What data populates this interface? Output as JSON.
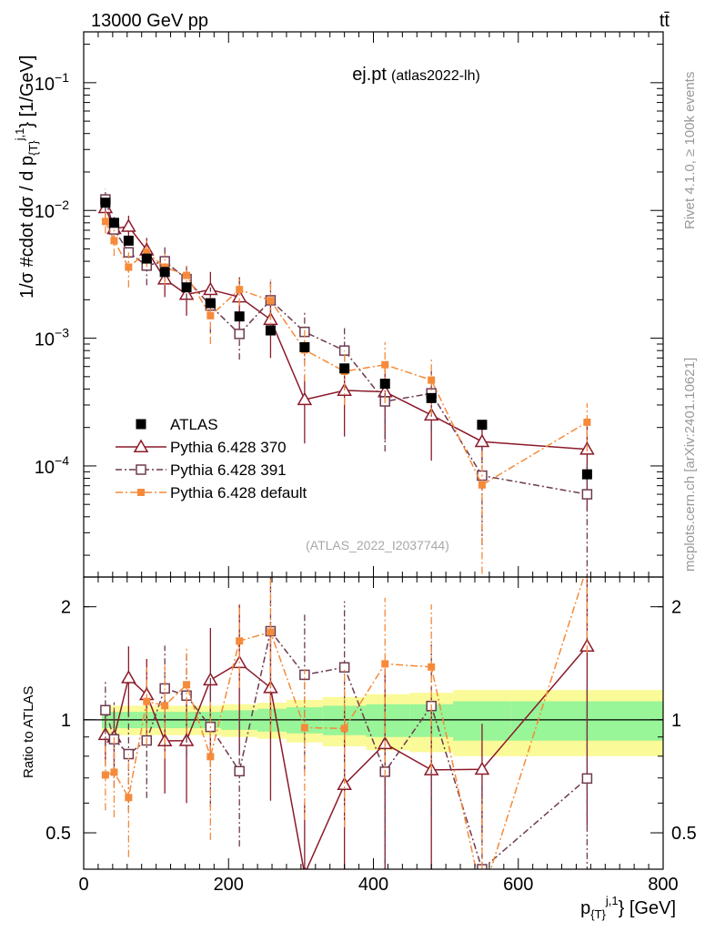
{
  "header": {
    "left": "13000 GeV pp",
    "right": "tt̄"
  },
  "title": {
    "main": "ej.pt",
    "sub": "(atlas2022-lh)"
  },
  "watermark": "(ATLAS_2022_I2037744)",
  "side_texts": {
    "rivet": "Rivet 4.1.0, ≥ 100k events",
    "mcplots": "mcplots.cern.ch [arXiv:2401.10621]"
  },
  "labels": {
    "y_main_prefix": "1/σ #cdot dσ / d p",
    "y_main_sub": "{T}",
    "y_main_sup": "j,1",
    "y_main_suffix": "} [1/GeV]",
    "y_ratio": "Ratio to ATLAS",
    "x_prefix": "p",
    "x_sub": "{T}",
    "x_sup": "j,1",
    "x_suffix": "} [GeV]"
  },
  "colors": {
    "data": "#000000",
    "p370": "#8b1a2a",
    "p391": "#6e3a4e",
    "pdef": "#f58a3a",
    "band_inner": "#98f598",
    "band_outer": "#fafa98"
  },
  "chart_data": {
    "type": "scatter",
    "xlabel": "p_T^{j,1} [GeV]",
    "ylabel": "1/sigma dsigma/dp_T^{j,1} [1/GeV]",
    "xlim": [
      0,
      800
    ],
    "ylim": [
      1.35e-05,
      0.25
    ],
    "yscale": "log",
    "ratio_ylim": [
      0.4,
      2.4
    ],
    "ratio_yscale": "log",
    "x_ticks": [
      0,
      200,
      400,
      600,
      800
    ],
    "x_tick_labels": [
      "0",
      "200",
      "400",
      "600",
      "800"
    ],
    "y_tick_values": [
      0.1,
      0.01,
      0.001,
      0.0001
    ],
    "y_tick_bases": [
      "10",
      "10",
      "10",
      "10"
    ],
    "y_tick_exps": [
      "−1",
      "−2",
      "−3",
      "−4"
    ],
    "ratio_ticks": [
      0.5,
      1,
      2
    ],
    "ratio_tick_labels": [
      "0.5",
      "1",
      "2"
    ],
    "legend": [
      "ATLAS",
      "Pythia 6.428 370",
      "Pythia 6.428 391",
      "Pythia 6.428 default"
    ],
    "bins": [
      [
        25,
        35
      ],
      [
        35,
        50
      ],
      [
        50,
        75
      ],
      [
        75,
        100
      ],
      [
        100,
        125
      ],
      [
        125,
        160
      ],
      [
        160,
        190
      ],
      [
        190,
        240
      ],
      [
        240,
        280
      ],
      [
        280,
        330
      ],
      [
        330,
        390
      ],
      [
        390,
        450
      ],
      [
        450,
        510
      ],
      [
        510,
        590
      ],
      [
        590,
        800
      ]
    ],
    "x": [
      30,
      42,
      62,
      87,
      112,
      142,
      175,
      215,
      258,
      305,
      360,
      416,
      480,
      550,
      695
    ],
    "data": [
      0.0115,
      0.008,
      0.0058,
      0.0042,
      0.0033,
      0.0025,
      0.00188,
      0.00148,
      0.00115,
      0.00085,
      0.00058,
      0.00044,
      0.00034,
      0.00021,
      8.6e-05
    ],
    "data_unc_inner": [
      0.05,
      0.05,
      0.05,
      0.05,
      0.05,
      0.05,
      0.05,
      0.06,
      0.07,
      0.08,
      0.09,
      0.1,
      0.1,
      0.12,
      0.12
    ],
    "data_unc_outer": [
      0.09,
      0.09,
      0.09,
      0.09,
      0.09,
      0.09,
      0.09,
      0.1,
      0.11,
      0.13,
      0.15,
      0.17,
      0.18,
      0.2,
      0.2
    ],
    "series": [
      {
        "name": "Pythia 6.428 370",
        "key": "p370",
        "marker": "triangle",
        "dash": "",
        "values": [
          0.0105,
          0.0072,
          0.0075,
          0.0049,
          0.0029,
          0.0022,
          0.0024,
          0.0021,
          0.0014,
          0.00033,
          0.00039,
          0.00038,
          0.00025,
          0.000155,
          0.000135
        ],
        "err": [
          0.0018,
          0.0013,
          0.0016,
          0.0012,
          0.0008,
          0.0007,
          0.0009,
          0.0009,
          0.0007,
          0.00018,
          0.00022,
          0.00022,
          0.00014,
          5e-05,
          9e-05
        ]
      },
      {
        "name": "Pythia 6.428 391",
        "key": "p391",
        "marker": "square",
        "dash": "7,3,2,3",
        "values": [
          0.0122,
          0.0071,
          0.0047,
          0.0037,
          0.004,
          0.0029,
          0.0018,
          0.00108,
          0.00198,
          0.00112,
          0.0008,
          0.00032,
          0.00037,
          8.4e-05,
          6e-05
        ],
        "err": [
          0.0025,
          0.0018,
          0.0014,
          0.0011,
          0.0012,
          0.0009,
          0.0007,
          0.0004,
          0.0008,
          0.0005,
          0.0004,
          0.00019,
          0.00018,
          6e-05,
          5e-05
        ]
      },
      {
        "name": "Pythia 6.428 default",
        "key": "pdef",
        "marker": "filled-square",
        "dash": "8,3,2,3",
        "values": [
          0.0082,
          0.0058,
          0.0036,
          0.0047,
          0.0036,
          0.0031,
          0.0015,
          0.0024,
          0.00197,
          0.00081,
          0.00055,
          0.00062,
          0.00047,
          7.1e-05,
          0.00022
        ],
        "err": [
          0.0016,
          0.0014,
          0.0011,
          0.0011,
          0.001,
          0.0008,
          0.0006,
          0.0006,
          0.0009,
          0.00035,
          0.00025,
          0.00031,
          0.00022,
          6e-05,
          9e-05
        ]
      }
    ]
  }
}
